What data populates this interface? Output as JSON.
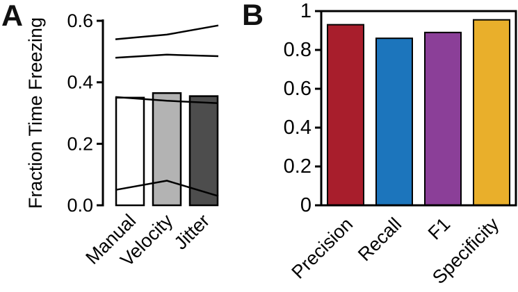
{
  "chart_data": [
    {
      "id": "panel-a",
      "type": "bar",
      "panel_label": "A",
      "title": "",
      "xlabel": "",
      "ylabel": "Fraction Time Freezing",
      "ylim": [
        0,
        0.6
      ],
      "ytick_labels": [
        "0.0",
        "0.2",
        "0.4",
        "0.6"
      ],
      "categories": [
        "Manual",
        "Velocity",
        "Jitter"
      ],
      "values": [
        0.35,
        0.365,
        0.355
      ],
      "bar_fill_colors": [
        "#ffffff",
        "#b3b3b3",
        "#4d4d4d"
      ],
      "bar_edge_color": "#000000",
      "overlay_lines": [
        [
          0.54,
          0.555,
          0.585
        ],
        [
          0.48,
          0.49,
          0.485
        ],
        [
          0.352,
          0.34,
          0.332
        ],
        [
          0.05,
          0.08,
          0.03
        ]
      ],
      "frame": "left-spine-only",
      "grid": false,
      "legend": false
    },
    {
      "id": "panel-b",
      "type": "bar",
      "panel_label": "B",
      "title": "",
      "xlabel": "",
      "ylabel": "",
      "ylim": [
        0,
        1
      ],
      "ytick_labels": [
        "0",
        "0.2",
        "0.4",
        "0.6",
        "0.8",
        "1"
      ],
      "categories": [
        "Precision",
        "Recall",
        "F1",
        "Specificity"
      ],
      "values": [
        0.93,
        0.86,
        0.89,
        0.955
      ],
      "bar_fill_colors": [
        "#a81e2c",
        "#1c75bc",
        "#8b3f98",
        "#e9af2b"
      ],
      "bar_edge_color": "#000000",
      "frame": "box",
      "grid": false,
      "legend": false
    }
  ]
}
